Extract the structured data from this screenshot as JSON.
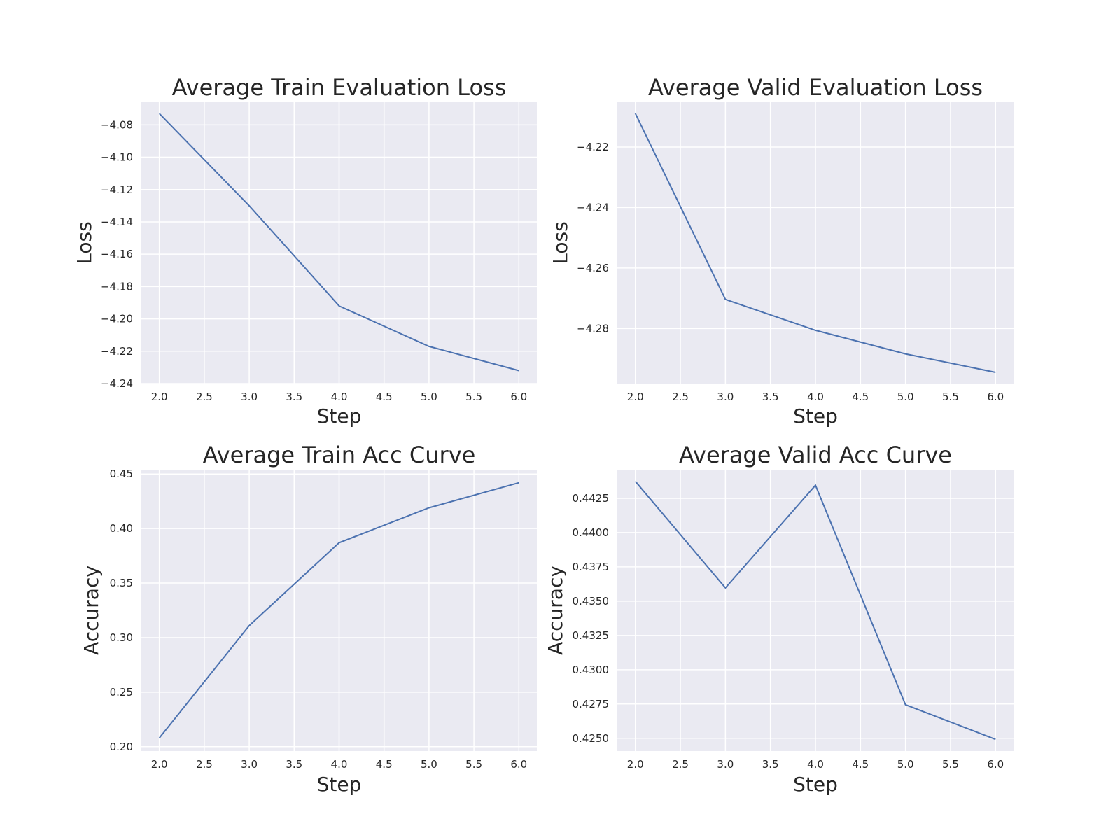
{
  "figure": {
    "background": "#ffffff",
    "plot_background": "#eaeaf2",
    "line_color": "#4c72b0"
  },
  "chart_data": [
    {
      "type": "line",
      "title": "Average Train Evaluation Loss",
      "xlabel": "Step",
      "ylabel": "Loss",
      "x": [
        2,
        3,
        4,
        5,
        6
      ],
      "series": [
        {
          "values": [
            -4.073,
            -4.13,
            -4.192,
            -4.217,
            -4.232
          ]
        }
      ],
      "xlim": [
        1.8,
        6.2
      ],
      "ylim": [
        -4.24,
        -4.066
      ],
      "xticks": [
        2.0,
        2.5,
        3.0,
        3.5,
        4.0,
        4.5,
        5.0,
        5.5,
        6.0
      ],
      "xtick_labels": [
        "2.0",
        "2.5",
        "3.0",
        "3.5",
        "4.0",
        "4.5",
        "5.0",
        "5.5",
        "6.0"
      ],
      "yticks": [
        -4.24,
        -4.22,
        -4.2,
        -4.18,
        -4.16,
        -4.14,
        -4.12,
        -4.1,
        -4.08
      ],
      "ytick_labels": [
        "−4.24",
        "−4.22",
        "−4.20",
        "−4.18",
        "−4.16",
        "−4.14",
        "−4.12",
        "−4.10",
        "−4.08"
      ],
      "grid": true
    },
    {
      "type": "line",
      "title": "Average Valid Evaluation Loss",
      "xlabel": "Step",
      "ylabel": "Loss",
      "x": [
        2,
        3,
        4,
        5,
        6
      ],
      "series": [
        {
          "values": [
            -4.2089,
            -4.2704,
            -4.2806,
            -4.2884,
            -4.2945
          ]
        }
      ],
      "xlim": [
        1.8,
        6.2
      ],
      "ylim": [
        -4.2982,
        -4.2052
      ],
      "xticks": [
        2.0,
        2.5,
        3.0,
        3.5,
        4.0,
        4.5,
        5.0,
        5.5,
        6.0
      ],
      "xtick_labels": [
        "2.0",
        "2.5",
        "3.0",
        "3.5",
        "4.0",
        "4.5",
        "5.0",
        "5.5",
        "6.0"
      ],
      "yticks": [
        -4.28,
        -4.26,
        -4.24,
        -4.22
      ],
      "ytick_labels": [
        "−4.28",
        "−4.26",
        "−4.24",
        "−4.22"
      ],
      "grid": true
    },
    {
      "type": "line",
      "title": "Average Train Acc Curve",
      "xlabel": "Step",
      "ylabel": "Accuracy",
      "x": [
        2,
        3,
        4,
        5,
        6
      ],
      "series": [
        {
          "values": [
            0.208,
            0.311,
            0.387,
            0.419,
            0.442
          ]
        }
      ],
      "xlim": [
        1.8,
        6.2
      ],
      "ylim": [
        0.196,
        0.454
      ],
      "xticks": [
        2.0,
        2.5,
        3.0,
        3.5,
        4.0,
        4.5,
        5.0,
        5.5,
        6.0
      ],
      "xtick_labels": [
        "2.0",
        "2.5",
        "3.0",
        "3.5",
        "4.0",
        "4.5",
        "5.0",
        "5.5",
        "6.0"
      ],
      "yticks": [
        0.2,
        0.25,
        0.3,
        0.35,
        0.4,
        0.45
      ],
      "ytick_labels": [
        "0.20",
        "0.25",
        "0.30",
        "0.35",
        "0.40",
        "0.45"
      ],
      "grid": true
    },
    {
      "type": "line",
      "title": "Average Valid Acc Curve",
      "xlabel": "Step",
      "ylabel": "Accuracy",
      "x": [
        2,
        3,
        4,
        5,
        6
      ],
      "series": [
        {
          "values": [
            0.44374,
            0.43597,
            0.44345,
            0.42745,
            0.42492
          ]
        }
      ],
      "xlim": [
        1.8,
        6.2
      ],
      "ylim": [
        0.42407,
        0.44459
      ],
      "xticks": [
        2.0,
        2.5,
        3.0,
        3.5,
        4.0,
        4.5,
        5.0,
        5.5,
        6.0
      ],
      "xtick_labels": [
        "2.0",
        "2.5",
        "3.0",
        "3.5",
        "4.0",
        "4.5",
        "5.0",
        "5.5",
        "6.0"
      ],
      "yticks": [
        0.425,
        0.4275,
        0.43,
        0.4325,
        0.435,
        0.4375,
        0.44,
        0.4425
      ],
      "ytick_labels": [
        "0.4250",
        "0.4275",
        "0.4300",
        "0.4325",
        "0.4350",
        "0.4375",
        "0.4400",
        "0.4425"
      ],
      "grid": true
    }
  ]
}
